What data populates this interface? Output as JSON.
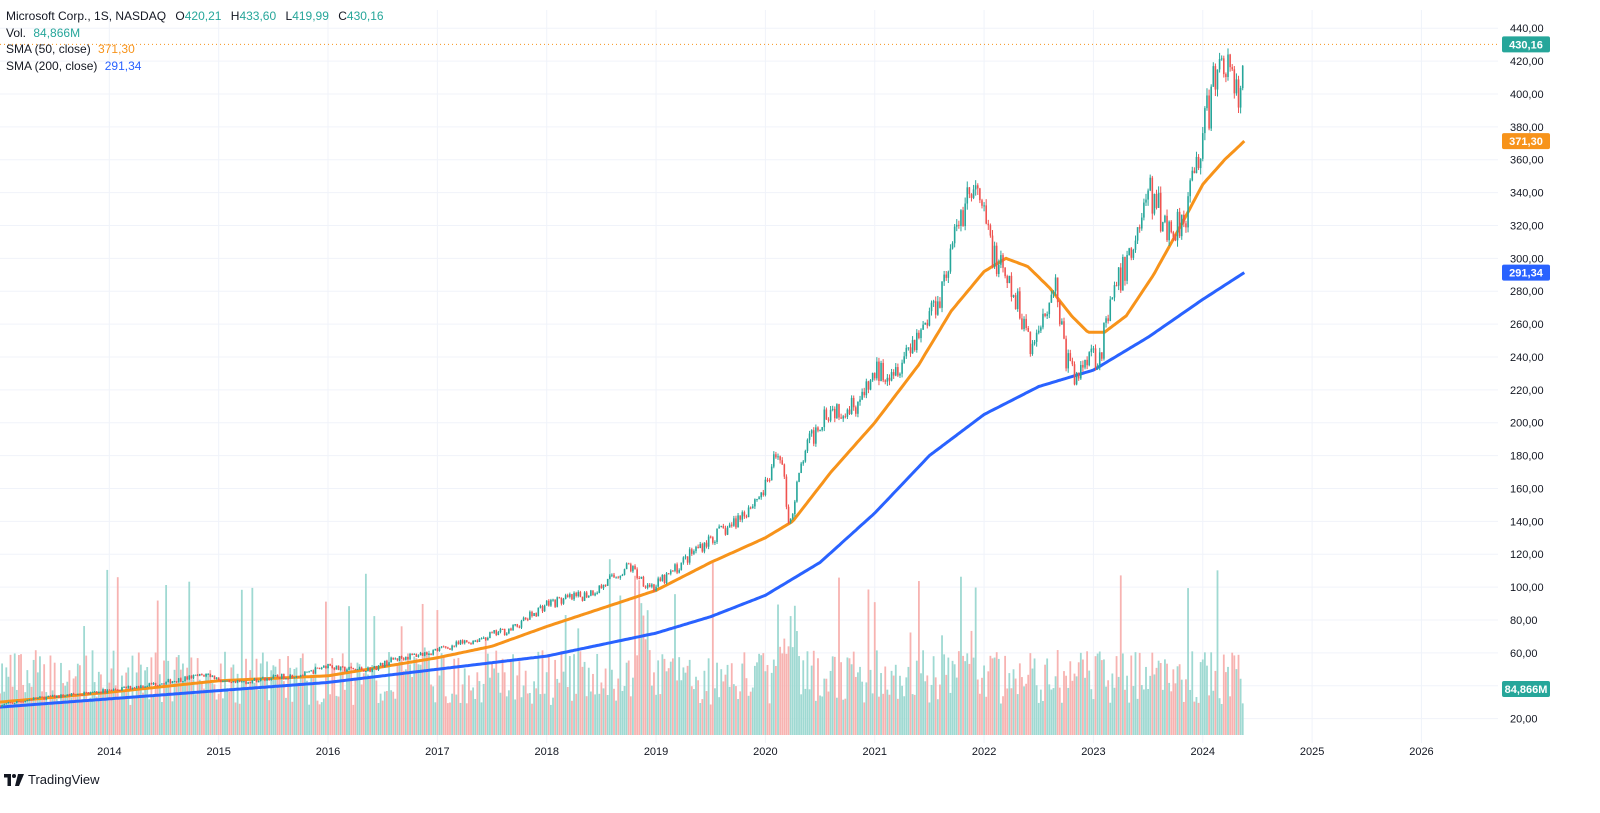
{
  "header": {
    "symbol": "Microsoft Corp., 1S, NASDAQ",
    "open_label": "O",
    "open": "420,21",
    "high_label": "H",
    "high": "433,60",
    "low_label": "L",
    "low": "419,99",
    "close_label": "C",
    "close": "430,16",
    "vol_label": "Vol.",
    "vol": "84,866M",
    "sma50_label": "SMA (50, close)",
    "sma50": "371,30",
    "sma200_label": "SMA (200, close)",
    "sma200": "291,34"
  },
  "footer": {
    "brand": "TradingView"
  },
  "colors": {
    "up": "#26a69a",
    "down": "#ef5350",
    "vol_up": "#9fd9d2",
    "vol_down": "#f7b3b1",
    "sma50": "#f7931a",
    "sma200": "#2962ff",
    "grid": "#f0f3fa",
    "axis_text": "#131722"
  },
  "chart_data": {
    "type": "candlestick",
    "instrument": "Microsoft Corp.",
    "interval": "1S",
    "exchange": "NASDAQ",
    "x_unit": "year (decimal)",
    "x_range": [
      2013.0,
      2026.7
    ],
    "x_ticks": [
      "2014",
      "2015",
      "2016",
      "2017",
      "2018",
      "2019",
      "2020",
      "2021",
      "2022",
      "2023",
      "2024",
      "2025",
      "2026"
    ],
    "y_range": [
      10,
      445
    ],
    "y_ticks": [
      "20,00",
      "40,00",
      "60,00",
      "80,00",
      "100,00",
      "120,00",
      "140,00",
      "160,00",
      "180,00",
      "200,00",
      "220,00",
      "240,00",
      "260,00",
      "280,00",
      "300,00",
      "320,00",
      "340,00",
      "360,00",
      "380,00",
      "400,00",
      "420,00",
      "440,00"
    ],
    "last_price_label": "430,16",
    "sma50_label": "371,30",
    "sma200_label": "291,34",
    "volume_label": "84,866M",
    "price_path": [
      [
        2013.0,
        28
      ],
      [
        2013.3,
        32
      ],
      [
        2013.6,
        34
      ],
      [
        2014.0,
        37
      ],
      [
        2014.5,
        42
      ],
      [
        2014.9,
        47
      ],
      [
        2015.1,
        41
      ],
      [
        2015.5,
        45
      ],
      [
        2015.8,
        47
      ],
      [
        2016.0,
        53
      ],
      [
        2016.1,
        50
      ],
      [
        2016.4,
        50
      ],
      [
        2016.6,
        56
      ],
      [
        2016.9,
        60
      ],
      [
        2017.3,
        67
      ],
      [
        2017.7,
        75
      ],
      [
        2018.0,
        90
      ],
      [
        2018.3,
        94
      ],
      [
        2018.5,
        100
      ],
      [
        2018.75,
        113
      ],
      [
        2018.9,
        103
      ],
      [
        2018.98,
        100
      ],
      [
        2019.1,
        106
      ],
      [
        2019.4,
        125
      ],
      [
        2019.7,
        138
      ],
      [
        2020.0,
        160
      ],
      [
        2020.13,
        185
      ],
      [
        2020.22,
        138
      ],
      [
        2020.35,
        180
      ],
      [
        2020.55,
        208
      ],
      [
        2020.75,
        210
      ],
      [
        2020.9,
        215
      ],
      [
        2021.0,
        230
      ],
      [
        2021.2,
        235
      ],
      [
        2021.45,
        260
      ],
      [
        2021.6,
        280
      ],
      [
        2021.85,
        340
      ],
      [
        2021.95,
        335
      ],
      [
        2022.1,
        300
      ],
      [
        2022.2,
        285
      ],
      [
        2022.35,
        265
      ],
      [
        2022.45,
        245
      ],
      [
        2022.55,
        270
      ],
      [
        2022.65,
        285
      ],
      [
        2022.75,
        240
      ],
      [
        2022.85,
        225
      ],
      [
        2022.95,
        245
      ],
      [
        2023.05,
        240
      ],
      [
        2023.2,
        280
      ],
      [
        2023.35,
        305
      ],
      [
        2023.5,
        340
      ],
      [
        2023.6,
        330
      ],
      [
        2023.7,
        315
      ],
      [
        2023.85,
        330
      ],
      [
        2024.0,
        375
      ],
      [
        2024.1,
        405
      ],
      [
        2024.2,
        425
      ],
      [
        2024.27,
        405
      ],
      [
        2024.33,
        395
      ],
      [
        2024.38,
        430
      ]
    ],
    "sma50_path": [
      [
        2013.0,
        30
      ],
      [
        2014.0,
        36
      ],
      [
        2015.0,
        43
      ],
      [
        2016.0,
        46
      ],
      [
        2017.0,
        57
      ],
      [
        2017.5,
        64
      ],
      [
        2018.0,
        76
      ],
      [
        2018.5,
        87
      ],
      [
        2019.0,
        98
      ],
      [
        2019.5,
        115
      ],
      [
        2020.0,
        130
      ],
      [
        2020.25,
        140
      ],
      [
        2020.6,
        170
      ],
      [
        2021.0,
        200
      ],
      [
        2021.4,
        235
      ],
      [
        2021.7,
        268
      ],
      [
        2022.0,
        292
      ],
      [
        2022.2,
        300
      ],
      [
        2022.4,
        295
      ],
      [
        2022.6,
        282
      ],
      [
        2022.8,
        265
      ],
      [
        2022.95,
        255
      ],
      [
        2023.1,
        255
      ],
      [
        2023.3,
        265
      ],
      [
        2023.55,
        290
      ],
      [
        2023.8,
        320
      ],
      [
        2024.0,
        345
      ],
      [
        2024.2,
        360
      ],
      [
        2024.38,
        371.3
      ]
    ],
    "sma200_path": [
      [
        2013.0,
        27
      ],
      [
        2014.0,
        32
      ],
      [
        2015.0,
        37
      ],
      [
        2016.0,
        42
      ],
      [
        2017.0,
        50
      ],
      [
        2018.0,
        58
      ],
      [
        2019.0,
        72
      ],
      [
        2019.5,
        82
      ],
      [
        2020.0,
        95
      ],
      [
        2020.5,
        115
      ],
      [
        2021.0,
        145
      ],
      [
        2021.5,
        180
      ],
      [
        2022.0,
        205
      ],
      [
        2022.5,
        222
      ],
      [
        2023.0,
        232
      ],
      [
        2023.5,
        252
      ],
      [
        2024.0,
        275
      ],
      [
        2024.38,
        291.34
      ]
    ]
  }
}
